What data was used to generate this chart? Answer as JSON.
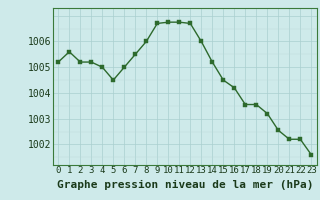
{
  "hours": [
    0,
    1,
    2,
    3,
    4,
    5,
    6,
    7,
    8,
    9,
    10,
    11,
    12,
    13,
    14,
    15,
    16,
    17,
    18,
    19,
    20,
    21,
    22,
    23
  ],
  "pressure": [
    1005.2,
    1005.6,
    1005.2,
    1005.2,
    1005.0,
    1004.5,
    1005.0,
    1005.5,
    1006.0,
    1006.7,
    1006.75,
    1006.75,
    1006.7,
    1006.0,
    1005.2,
    1004.5,
    1004.2,
    1003.55,
    1003.55,
    1003.2,
    1002.55,
    1002.2,
    1002.2,
    1001.6
  ],
  "line_color": "#2d6a2d",
  "marker_color": "#2d6a2d",
  "bg_color": "#ceeaea",
  "grid_major_color": "#aacfcf",
  "grid_minor_color": "#bddada",
  "xlabel": "Graphe pression niveau de la mer (hPa)",
  "ylabel_ticks": [
    1002,
    1003,
    1004,
    1005,
    1006
  ],
  "ylim": [
    1001.2,
    1007.3
  ],
  "xlim": [
    -0.5,
    23.5
  ],
  "axis_color": "#3a7a3a",
  "tick_label_color": "#1a3a1a",
  "xlabel_color": "#1a3a1a",
  "font_size_ticks": 7,
  "font_size_xlabel": 8
}
